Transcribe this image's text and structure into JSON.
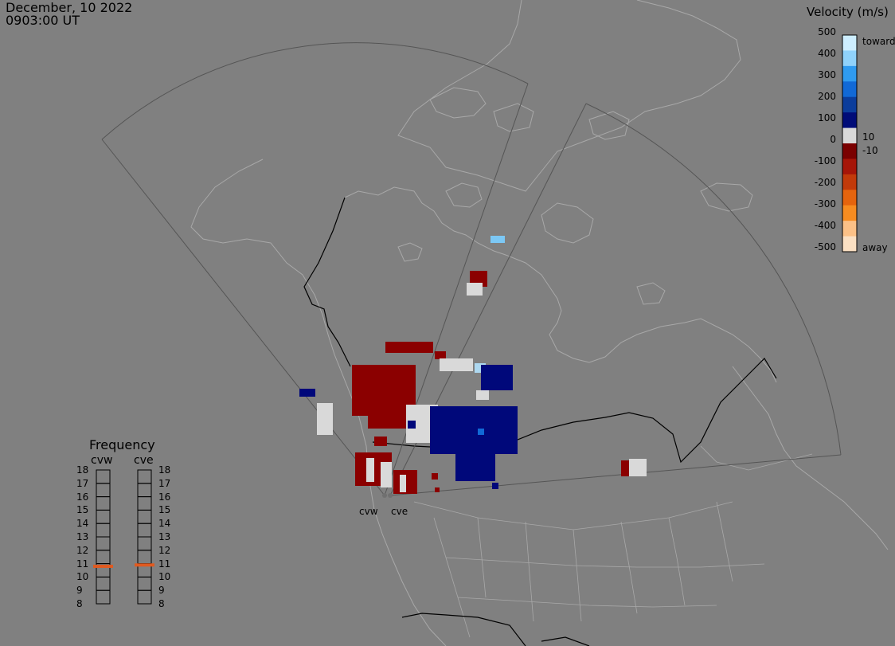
{
  "timestamp": {
    "date": "December, 10 2022",
    "time": "0903:00 UT"
  },
  "velocity_scale": {
    "title": "Velocity (m/s)",
    "ticks": [
      "500",
      "400",
      "300",
      "200",
      "100",
      "0",
      "-100",
      "-200",
      "-300",
      "-400",
      "-500"
    ],
    "inner_labels": {
      "pos": "10",
      "neg": "-10"
    },
    "toward_label": "toward",
    "away_label": "away",
    "colors": [
      "#cdeeff",
      "#8fd2fb",
      "#2f9bf0",
      "#1169d6",
      "#0b3d9c",
      "#000c78",
      "#d9d9d9",
      "#7a0000",
      "#a61508",
      "#c23a0a",
      "#e5640d",
      "#f78c20",
      "#fcc187",
      "#fbe0c3"
    ]
  },
  "frequency": {
    "title": "Frequency",
    "radars": [
      {
        "name": "cvw",
        "freq_mhz": 10.8
      },
      {
        "name": "cve",
        "freq_mhz": 10.9
      }
    ],
    "ticks": [
      "18",
      "17",
      "16",
      "15",
      "14",
      "13",
      "12",
      "11",
      "10",
      "9",
      "8"
    ],
    "marker_color": "#e05a20"
  },
  "sites": [
    {
      "name": "cvw"
    },
    {
      "name": "cve"
    }
  ]
}
